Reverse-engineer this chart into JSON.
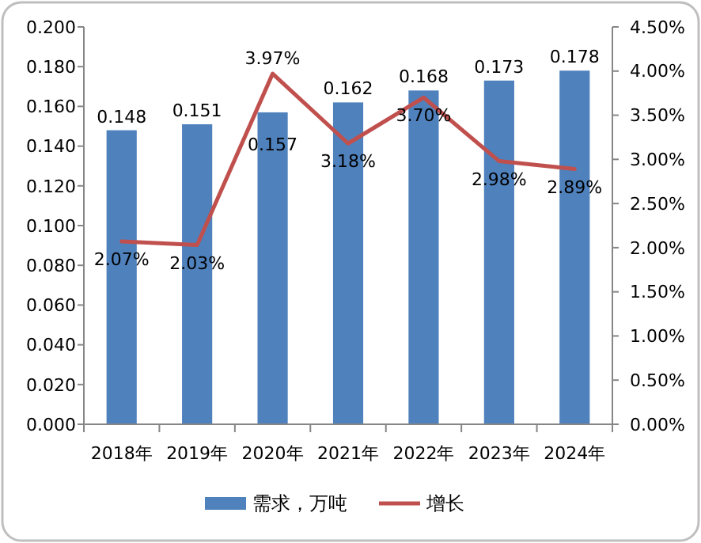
{
  "chart_data": {
    "type": "bar",
    "categories": [
      "2018年",
      "2019年",
      "2020年",
      "2021年",
      "2022年",
      "2023年",
      "2024年"
    ],
    "series": [
      {
        "name": "需求，万吨",
        "color": "#4f81bd",
        "values": [
          0.148,
          0.151,
          0.157,
          0.162,
          0.168,
          0.173,
          0.178
        ],
        "value_labels": [
          "0.148",
          "0.151",
          "0.157",
          "0.162",
          "0.168",
          "0.173",
          "0.178"
        ]
      },
      {
        "name": "增长",
        "type": "line",
        "axis": "y2",
        "color": "#c0504d",
        "values": [
          2.07,
          2.03,
          3.97,
          3.18,
          3.7,
          2.98,
          2.89
        ],
        "value_labels": [
          "2.07%",
          "2.03%",
          "3.97%",
          "3.18%",
          "3.70%",
          "2.98%",
          "2.89%"
        ]
      }
    ],
    "ylim": [
      0,
      0.2
    ],
    "yticks": [
      {
        "value": 0,
        "label": "0.000"
      },
      {
        "value": 0.02,
        "label": "0.020"
      },
      {
        "value": 0.04,
        "label": "0.040"
      },
      {
        "value": 0.06,
        "label": "0.060"
      },
      {
        "value": 0.08,
        "label": "0.080"
      },
      {
        "value": 0.1,
        "label": "0.100"
      },
      {
        "value": 0.12,
        "label": "0.120"
      },
      {
        "value": 0.14,
        "label": "0.140"
      },
      {
        "value": 0.16,
        "label": "0.160"
      },
      {
        "value": 0.18,
        "label": "0.180"
      },
      {
        "value": 0.2,
        "label": "0.200"
      }
    ],
    "y2lim": [
      0,
      4.5
    ],
    "y2ticks": [
      {
        "value": 0,
        "label": "0.00%"
      },
      {
        "value": 0.5,
        "label": "0.50%"
      },
      {
        "value": 1,
        "label": "1.00%"
      },
      {
        "value": 1.5,
        "label": "1.50%"
      },
      {
        "value": 2,
        "label": "2.00%"
      },
      {
        "value": 2.5,
        "label": "2.50%"
      },
      {
        "value": 3,
        "label": "3.00%"
      },
      {
        "value": 3.5,
        "label": "3.50%"
      },
      {
        "value": 4,
        "label": "4.00%"
      },
      {
        "value": 4.5,
        "label": "4.50%"
      }
    ],
    "legend": "bottom",
    "grid": false
  }
}
